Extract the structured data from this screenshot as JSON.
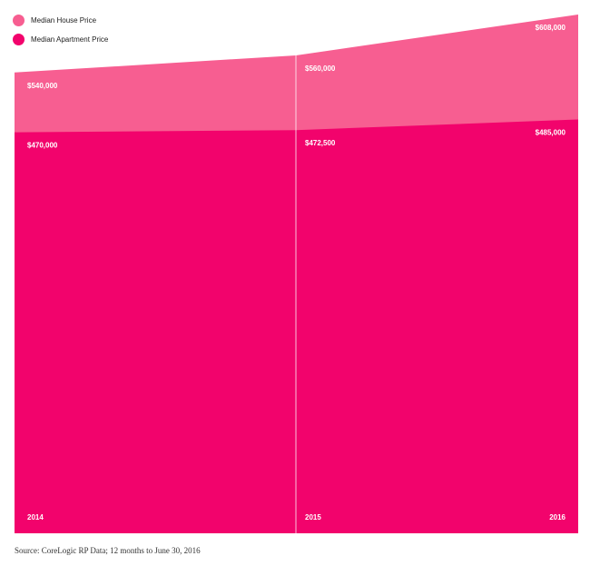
{
  "chart_data": {
    "type": "area",
    "categories": [
      "2014",
      "2015",
      "2016"
    ],
    "series": [
      {
        "name": "Median House Price",
        "values": [
          540000,
          560000,
          608000
        ],
        "labels": [
          "$540,000",
          "$560,000",
          "$608,000"
        ],
        "color": "#f75e91"
      },
      {
        "name": "Median Apartment Price",
        "values": [
          470000,
          472500,
          485000
        ],
        "labels": [
          "$470,000",
          "$472,500",
          "$485,000"
        ],
        "color": "#f2036c"
      }
    ],
    "ylim": [
      0,
      625000
    ],
    "grid": false,
    "legend": "top-left",
    "source": "Source: CoreLogic RP Data; 12 months to June 30, 2016"
  }
}
